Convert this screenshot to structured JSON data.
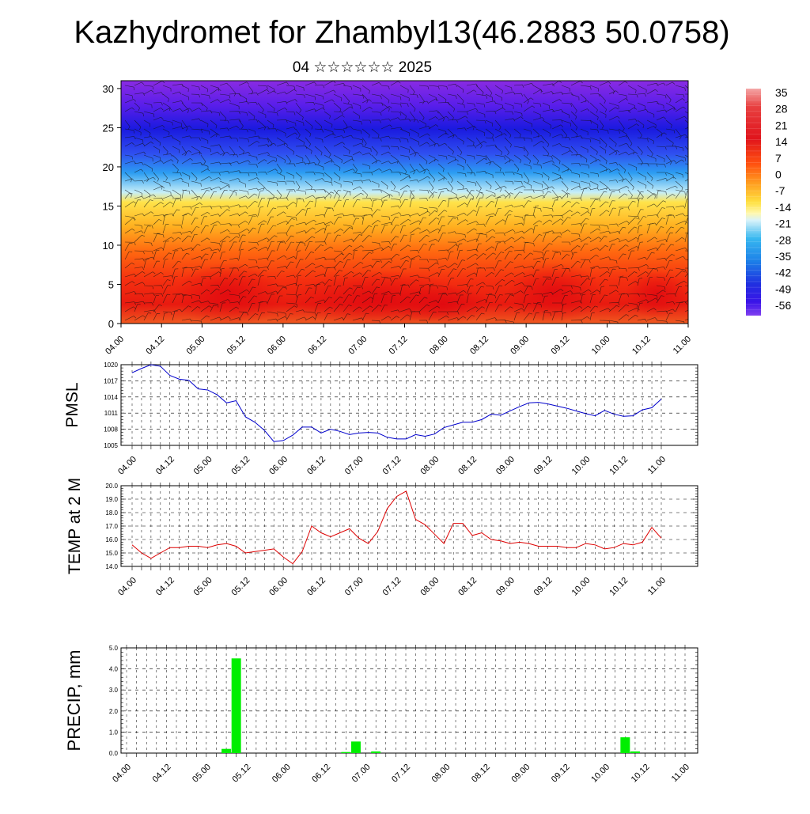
{
  "title": "Kazhydromet for Zhambyl13(46.2883 50.0758)",
  "subtitle": "04 ☆☆☆☆☆☆ 2025",
  "chart_data": [
    {
      "id": "cross-section",
      "type": "heatmap",
      "title": "",
      "xlabel": "",
      "ylabel": "",
      "x_tick_labels": [
        "04.00",
        "04.12",
        "05.00",
        "05.12",
        "06.00",
        "06.12",
        "07.00",
        "07.12",
        "08.00",
        "08.12",
        "09.00",
        "09.12",
        "10.00",
        "10.12",
        "11.00"
      ],
      "ylim": [
        0,
        31
      ],
      "y_ticks": [
        0,
        5,
        10,
        15,
        20,
        25,
        30
      ],
      "colorbar_labels": [
        "35",
        "28",
        "21",
        "14",
        "7",
        "0",
        "-7",
        "-14",
        "-21",
        "-28",
        "-35",
        "-42",
        "-49",
        "-56"
      ],
      "colorbar_values": [
        35,
        28,
        21,
        14,
        7,
        0,
        -7,
        -14,
        -21,
        -28,
        -35,
        -42,
        -49,
        -56
      ],
      "has_wind_barbs": true
    },
    {
      "id": "pmsl",
      "type": "line",
      "title": "",
      "xlabel": "",
      "ylabel": "PMSL",
      "ylim": [
        1005,
        1020
      ],
      "y_tick_labels": [
        "1005",
        "1008",
        "1011",
        "1014",
        "1017",
        "1020"
      ],
      "x_tick_labels": [
        "04.00",
        "04.12",
        "05.00",
        "05.12",
        "06.00",
        "06.12",
        "07.00",
        "07.12",
        "08.00",
        "08.12",
        "09.00",
        "09.12",
        "10.00",
        "10.12",
        "11.00"
      ],
      "x_step_hours": 3,
      "color": "#0000cc",
      "values": [
        1018.5,
        1019.3,
        1020.0,
        1019.7,
        1018.0,
        1017.3,
        1017.1,
        1015.5,
        1015.3,
        1014.4,
        1012.9,
        1013.3,
        1010.3,
        1009.3,
        1007.8,
        1005.7,
        1005.9,
        1006.9,
        1008.4,
        1008.4,
        1007.3,
        1008.0,
        1007.6,
        1007.0,
        1007.3,
        1007.4,
        1007.3,
        1006.5,
        1006.2,
        1006.2,
        1007.0,
        1006.7,
        1007.1,
        1008.3,
        1008.8,
        1009.3,
        1009.3,
        1009.8,
        1010.8,
        1010.6,
        1011.4,
        1012.2,
        1012.9,
        1013.0,
        1012.7,
        1012.3,
        1011.9,
        1011.4,
        1010.9,
        1010.5,
        1011.5,
        1010.8,
        1010.4,
        1010.5,
        1011.6,
        1012.0,
        1013.6
      ]
    },
    {
      "id": "temp2m",
      "type": "line",
      "title": "",
      "xlabel": "",
      "ylabel": "TEMP at 2 M",
      "ylim": [
        14.0,
        20.0
      ],
      "y_tick_labels": [
        "14.0",
        "15.0",
        "16.0",
        "17.0",
        "18.0",
        "19.0",
        "20.0"
      ],
      "x_tick_labels": [
        "04.00",
        "04.12",
        "05.00",
        "05.12",
        "06.00",
        "06.12",
        "07.00",
        "07.12",
        "08.00",
        "08.12",
        "09.00",
        "09.12",
        "10.00",
        "10.12",
        "11.00"
      ],
      "x_step_hours": 3,
      "color": "#dd0000",
      "values": [
        15.6,
        15.0,
        14.6,
        15.0,
        15.4,
        15.4,
        15.5,
        15.5,
        15.4,
        15.6,
        15.7,
        15.5,
        15.0,
        15.1,
        15.2,
        15.3,
        14.7,
        14.2,
        15.1,
        17.0,
        16.5,
        16.2,
        16.5,
        16.8,
        16.1,
        15.7,
        16.6,
        18.3,
        19.2,
        19.6,
        17.5,
        17.1,
        16.4,
        15.7,
        17.2,
        17.2,
        16.3,
        16.5,
        16.0,
        15.9,
        15.7,
        15.8,
        15.7,
        15.5,
        15.5,
        15.5,
        15.4,
        15.4,
        15.7,
        15.6,
        15.3,
        15.4,
        15.7,
        15.6,
        15.8,
        16.9,
        16.1
      ]
    },
    {
      "id": "precip",
      "type": "bar",
      "title": "",
      "xlabel": "",
      "ylabel": "PRECIP, mm",
      "ylim": [
        0.0,
        5.0
      ],
      "y_tick_labels": [
        "0.0",
        "1.0",
        "2.0",
        "3.0",
        "4.0",
        "5.0"
      ],
      "x_tick_labels": [
        "04.00",
        "04.12",
        "05.00",
        "05.12",
        "06.00",
        "06.12",
        "07.00",
        "07.12",
        "08.00",
        "08.12",
        "09.00",
        "09.12",
        "10.00",
        "10.12",
        "11.00"
      ],
      "x_step_hours": 3,
      "color": "#00ee00",
      "bars": [
        {
          "hour": 30,
          "value": 0.2
        },
        {
          "hour": 33,
          "value": 4.5
        },
        {
          "hour": 66,
          "value": 0.05
        },
        {
          "hour": 69,
          "value": 0.55
        },
        {
          "hour": 75,
          "value": 0.08
        },
        {
          "hour": 150,
          "value": 0.75
        },
        {
          "hour": 153,
          "value": 0.08
        }
      ]
    }
  ]
}
